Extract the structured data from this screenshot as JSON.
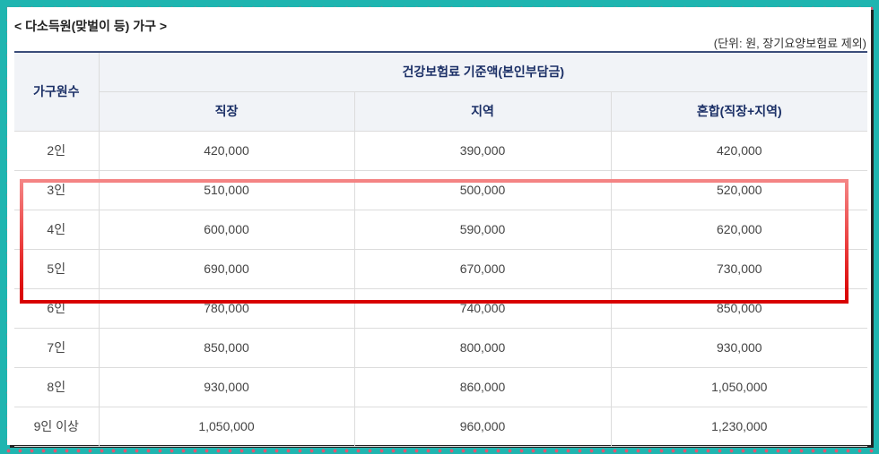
{
  "title": "< 다소득원(맞벌이 등) 가구 >",
  "unit_note": "(단위: 원, 장기요양보험료 제외)",
  "table": {
    "header": {
      "household": "가구원수",
      "group": "건강보험료 기준액(본인부담금)",
      "col_workplace": "직장",
      "col_region": "지역",
      "col_mixed": "혼합(직장+지역)"
    },
    "rows": [
      {
        "size": "2인",
        "workplace": "420,000",
        "region": "390,000",
        "mixed": "420,000"
      },
      {
        "size": "3인",
        "workplace": "510,000",
        "region": "500,000",
        "mixed": "520,000"
      },
      {
        "size": "4인",
        "workplace": "600,000",
        "region": "590,000",
        "mixed": "620,000"
      },
      {
        "size": "5인",
        "workplace": "690,000",
        "region": "670,000",
        "mixed": "730,000"
      },
      {
        "size": "6인",
        "workplace": "780,000",
        "region": "740,000",
        "mixed": "850,000"
      },
      {
        "size": "7인",
        "workplace": "850,000",
        "region": "800,000",
        "mixed": "930,000"
      },
      {
        "size": "8인",
        "workplace": "930,000",
        "region": "860,000",
        "mixed": "1,050,000"
      },
      {
        "size": "9인 이상",
        "workplace": "1,050,000",
        "region": "960,000",
        "mixed": "1,230,000"
      }
    ]
  },
  "colors": {
    "background": "#1fb5b0",
    "dots": "#e8526f",
    "header_bg": "#f1f3f7",
    "header_text": "#1b2f66",
    "highlight": "#d80000"
  }
}
